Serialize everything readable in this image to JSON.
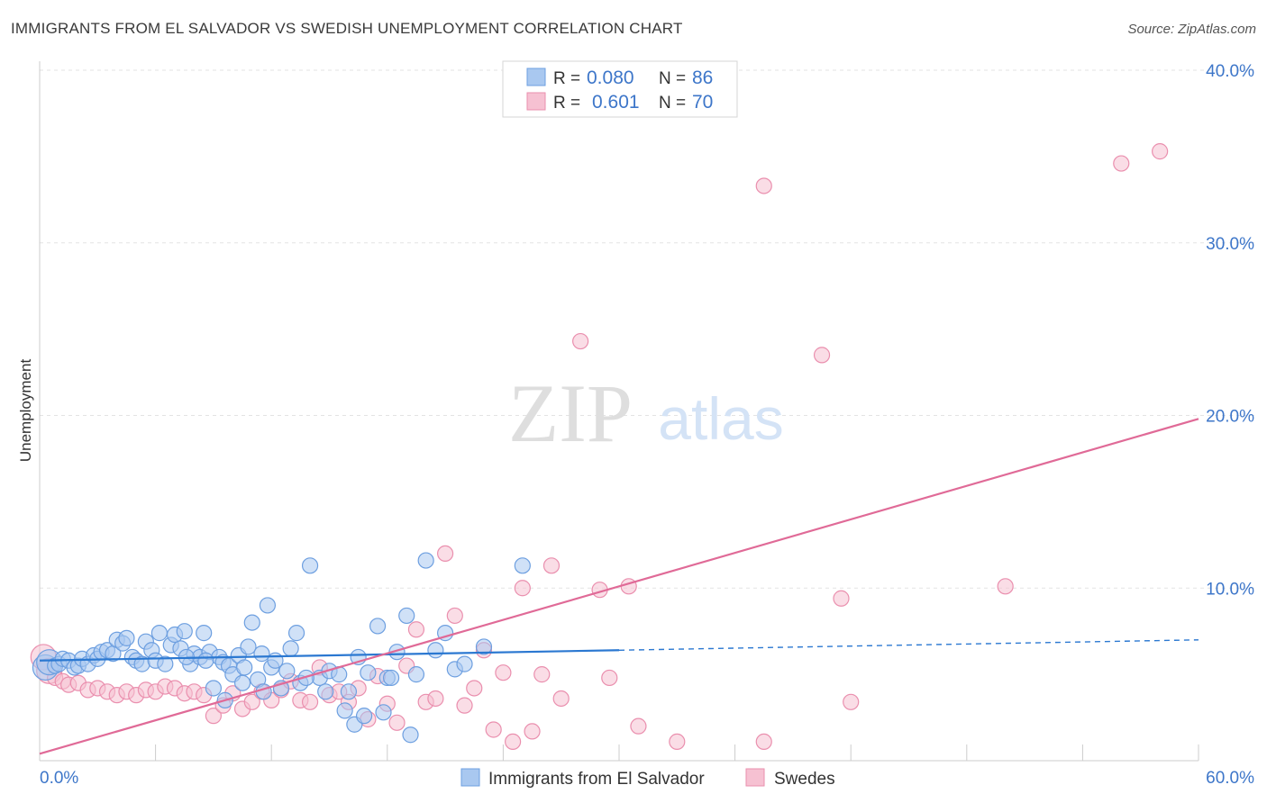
{
  "header": {
    "title": "IMMIGRANTS FROM EL SALVADOR VS SWEDISH UNEMPLOYMENT CORRELATION CHART",
    "source": "Source: ZipAtlas.com"
  },
  "watermark": {
    "zip": "ZIP",
    "atlas": "atlas"
  },
  "legend_box": {
    "rows": [
      {
        "r_label": "R =",
        "r_value": "0.080",
        "n_label": "N =",
        "n_value": "86"
      },
      {
        "r_label": "R =",
        "r_value": "0.601",
        "n_label": "N =",
        "n_value": "70"
      }
    ]
  },
  "colors": {
    "blue_fill": "#a9c8f0",
    "blue_stroke": "#6d9fe0",
    "blue_line": "#2b78d1",
    "pink_fill": "#f6c1d2",
    "pink_stroke": "#ea8fae",
    "pink_line": "#e06a97",
    "value_text": "#3d76c9",
    "grid": "#e3e3e3"
  },
  "chart_data": {
    "type": "scatter",
    "title": "IMMIGRANTS FROM EL SALVADOR VS SWEDISH UNEMPLOYMENT CORRELATION CHART",
    "xlabel": "",
    "ylabel": "Unemployment",
    "xlim": [
      0,
      60
    ],
    "ylim": [
      0,
      40
    ],
    "x_tick_labels": [
      "0.0%",
      "60.0%"
    ],
    "y_tick_labels": [
      "10.0%",
      "20.0%",
      "30.0%",
      "40.0%"
    ],
    "y_ticks": [
      10,
      20,
      30,
      40
    ],
    "grid": true,
    "legend_position": "bottom",
    "series": [
      {
        "name": "Immigrants from El Salvador",
        "color": "#a9c8f0",
        "r": 0.08,
        "n": 86,
        "trend": {
          "x0": 0,
          "y0": 5.8,
          "x1": 30,
          "y1": 6.4,
          "dashed_to_x": 60,
          "dashed_to_y": 7.0
        },
        "points": [
          [
            0.3,
            5.4
          ],
          [
            0.5,
            5.7
          ],
          [
            0.8,
            5.5
          ],
          [
            1.0,
            5.6
          ],
          [
            1.2,
            5.9
          ],
          [
            1.5,
            5.8
          ],
          [
            1.8,
            5.4
          ],
          [
            2.0,
            5.5
          ],
          [
            2.2,
            5.9
          ],
          [
            2.5,
            5.6
          ],
          [
            2.8,
            6.1
          ],
          [
            3.0,
            5.9
          ],
          [
            3.2,
            6.3
          ],
          [
            3.5,
            6.4
          ],
          [
            3.8,
            6.2
          ],
          [
            4.0,
            7.0
          ],
          [
            4.3,
            6.8
          ],
          [
            4.5,
            7.1
          ],
          [
            4.8,
            6.0
          ],
          [
            5.0,
            5.8
          ],
          [
            5.3,
            5.6
          ],
          [
            5.5,
            6.9
          ],
          [
            5.8,
            6.4
          ],
          [
            6.0,
            5.8
          ],
          [
            6.2,
            7.4
          ],
          [
            6.5,
            5.6
          ],
          [
            6.8,
            6.7
          ],
          [
            7.0,
            7.3
          ],
          [
            7.3,
            6.5
          ],
          [
            7.5,
            7.5
          ],
          [
            7.8,
            5.6
          ],
          [
            8.0,
            6.2
          ],
          [
            8.3,
            6.0
          ],
          [
            8.5,
            7.4
          ],
          [
            8.8,
            6.3
          ],
          [
            9.0,
            4.2
          ],
          [
            9.3,
            6.0
          ],
          [
            9.5,
            5.7
          ],
          [
            9.8,
            5.5
          ],
          [
            10.0,
            5.0
          ],
          [
            10.3,
            6.1
          ],
          [
            10.5,
            4.5
          ],
          [
            10.8,
            6.6
          ],
          [
            11.0,
            8.0
          ],
          [
            11.3,
            4.7
          ],
          [
            11.5,
            6.2
          ],
          [
            11.8,
            9.0
          ],
          [
            12.0,
            5.4
          ],
          [
            12.5,
            4.2
          ],
          [
            12.8,
            5.2
          ],
          [
            13.0,
            6.5
          ],
          [
            13.3,
            7.4
          ],
          [
            13.5,
            4.5
          ],
          [
            14.0,
            11.3
          ],
          [
            14.5,
            4.8
          ],
          [
            15.0,
            5.2
          ],
          [
            15.5,
            5.0
          ],
          [
            16.0,
            4.0
          ],
          [
            16.5,
            6.0
          ],
          [
            17.0,
            5.1
          ],
          [
            17.5,
            7.8
          ],
          [
            18.0,
            4.8
          ],
          [
            18.5,
            6.3
          ],
          [
            19.0,
            8.4
          ],
          [
            19.5,
            5.0
          ],
          [
            20.0,
            11.6
          ],
          [
            20.5,
            6.4
          ],
          [
            21.0,
            7.4
          ],
          [
            21.5,
            5.3
          ],
          [
            22.0,
            5.6
          ],
          [
            23.0,
            6.6
          ],
          [
            25.0,
            11.3
          ],
          [
            14.8,
            4.0
          ],
          [
            15.8,
            2.9
          ],
          [
            16.3,
            2.1
          ],
          [
            16.8,
            2.6
          ],
          [
            19.2,
            1.5
          ],
          [
            18.2,
            4.8
          ],
          [
            17.8,
            2.8
          ],
          [
            13.8,
            4.8
          ],
          [
            12.2,
            5.8
          ],
          [
            11.6,
            4.0
          ],
          [
            10.6,
            5.4
          ],
          [
            9.6,
            3.5
          ],
          [
            8.6,
            5.8
          ],
          [
            7.6,
            6.0
          ]
        ]
      },
      {
        "name": "Swedes",
        "color": "#f6c1d2",
        "r": 0.601,
        "n": 70,
        "trend": {
          "x0": 0,
          "y0": 0.4,
          "x1": 60,
          "y1": 19.8
        },
        "points": [
          [
            0.2,
            6.0
          ],
          [
            0.5,
            5.2
          ],
          [
            0.8,
            4.8
          ],
          [
            1.2,
            4.6
          ],
          [
            1.5,
            4.4
          ],
          [
            2.0,
            4.5
          ],
          [
            2.5,
            4.1
          ],
          [
            3.0,
            4.2
          ],
          [
            3.5,
            4.0
          ],
          [
            4.0,
            3.8
          ],
          [
            4.5,
            4.0
          ],
          [
            5.0,
            3.8
          ],
          [
            5.5,
            4.1
          ],
          [
            6.0,
            4.0
          ],
          [
            6.5,
            4.3
          ],
          [
            7.0,
            4.2
          ],
          [
            7.5,
            3.9
          ],
          [
            8.0,
            4.0
          ],
          [
            8.5,
            3.8
          ],
          [
            9.0,
            2.6
          ],
          [
            9.5,
            3.2
          ],
          [
            10.0,
            3.9
          ],
          [
            10.5,
            3.0
          ],
          [
            11.0,
            3.4
          ],
          [
            11.5,
            4.0
          ],
          [
            12.0,
            3.5
          ],
          [
            12.5,
            4.1
          ],
          [
            13.0,
            4.6
          ],
          [
            13.5,
            3.5
          ],
          [
            14.0,
            3.4
          ],
          [
            14.5,
            5.4
          ],
          [
            15.0,
            3.8
          ],
          [
            15.5,
            4.0
          ],
          [
            16.0,
            3.4
          ],
          [
            16.5,
            4.2
          ],
          [
            17.0,
            2.4
          ],
          [
            17.5,
            4.9
          ],
          [
            18.0,
            3.3
          ],
          [
            18.5,
            2.2
          ],
          [
            19.0,
            5.5
          ],
          [
            19.5,
            7.6
          ],
          [
            20.0,
            3.4
          ],
          [
            20.5,
            3.6
          ],
          [
            21.0,
            12.0
          ],
          [
            21.5,
            8.4
          ],
          [
            22.0,
            3.2
          ],
          [
            22.5,
            4.2
          ],
          [
            23.0,
            6.4
          ],
          [
            23.5,
            1.8
          ],
          [
            24.0,
            5.1
          ],
          [
            24.5,
            1.1
          ],
          [
            25.0,
            10.0
          ],
          [
            25.5,
            1.7
          ],
          [
            26.0,
            5.0
          ],
          [
            26.5,
            11.3
          ],
          [
            27.0,
            3.6
          ],
          [
            28.0,
            24.3
          ],
          [
            29.0,
            9.9
          ],
          [
            29.5,
            4.8
          ],
          [
            30.5,
            10.1
          ],
          [
            31.0,
            2.0
          ],
          [
            33.0,
            1.1
          ],
          [
            37.5,
            33.3
          ],
          [
            37.5,
            1.1
          ],
          [
            40.5,
            23.5
          ],
          [
            41.5,
            9.4
          ],
          [
            42.0,
            3.4
          ],
          [
            50.0,
            10.1
          ],
          [
            56.0,
            34.6
          ],
          [
            58.0,
            35.3
          ]
        ]
      }
    ]
  },
  "bottom_legend": {
    "items": [
      {
        "label": "Immigrants from El Salvador"
      },
      {
        "label": "Swedes"
      }
    ]
  }
}
